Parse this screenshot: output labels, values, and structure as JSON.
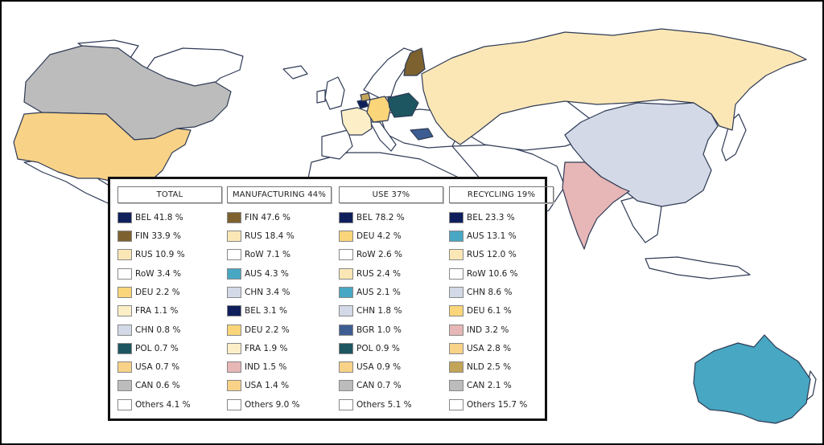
{
  "colors": {
    "BEL": "#0e1f5b",
    "FIN": "#7d6230",
    "RUS": "#fbe7b6",
    "RoW": "#ffffff",
    "DEU": "#fad57a",
    "FRA": "#fcefc8",
    "CHN": "#d3d9e6",
    "POL": "#1d5660",
    "USA": "#f8d287",
    "CAN": "#bcbcbc",
    "Others": "#ffffff",
    "AUS": "#48a7c2",
    "IND": "#e7b6b6",
    "BGR": "#3d5d92",
    "NLD": "#c3a559"
  },
  "legend": {
    "columns": [
      {
        "title": "TOTAL",
        "items": [
          {
            "code": "BEL",
            "label": "BEL 41.8 %"
          },
          {
            "code": "FIN",
            "label": "FIN 33.9 %"
          },
          {
            "code": "RUS",
            "label": "RUS 10.9 %"
          },
          {
            "code": "RoW",
            "label": "RoW 3.4 %"
          },
          {
            "code": "DEU",
            "label": "DEU 2.2 %"
          },
          {
            "code": "FRA",
            "label": "FRA 1.1 %"
          },
          {
            "code": "CHN",
            "label": "CHN 0.8 %"
          },
          {
            "code": "POL",
            "label": "POL 0.7 %"
          },
          {
            "code": "USA",
            "label": "USA 0.7 %"
          },
          {
            "code": "CAN",
            "label": "CAN 0.6 %"
          },
          {
            "code": "Others",
            "label": "Others 4.1 %"
          }
        ]
      },
      {
        "title": "MANUFACTURING  44%",
        "items": [
          {
            "code": "FIN",
            "label": "FIN 47.6 %"
          },
          {
            "code": "RUS",
            "label": "RUS 18.4 %"
          },
          {
            "code": "RoW",
            "label": "RoW 7.1 %"
          },
          {
            "code": "AUS",
            "label": "AUS 4.3 %"
          },
          {
            "code": "CHN",
            "label": "CHN 3.4 %"
          },
          {
            "code": "BEL",
            "label": "BEL 3.1 %"
          },
          {
            "code": "DEU",
            "label": "DEU 2.2 %"
          },
          {
            "code": "FRA",
            "label": "FRA 1.9 %"
          },
          {
            "code": "IND",
            "label": "IND 1.5 %"
          },
          {
            "code": "USA",
            "label": "USA 1.4 %"
          },
          {
            "code": "Others",
            "label": "Others 9.0 %"
          }
        ]
      },
      {
        "title": "USE  37%",
        "items": [
          {
            "code": "BEL",
            "label": "BEL 78.2 %"
          },
          {
            "code": "DEU",
            "label": "DEU 4.2 %"
          },
          {
            "code": "RoW",
            "label": "RoW 2.6 %"
          },
          {
            "code": "RUS",
            "label": "RUS 2.4 %"
          },
          {
            "code": "AUS",
            "label": "AUS 2.1 %"
          },
          {
            "code": "CHN",
            "label": "CHN 1.8 %"
          },
          {
            "code": "BGR",
            "label": "BGR 1.0 %"
          },
          {
            "code": "POL",
            "label": "POL 0.9 %"
          },
          {
            "code": "USA",
            "label": "USA 0.9 %"
          },
          {
            "code": "CAN",
            "label": "CAN 0.7 %"
          },
          {
            "code": "Others",
            "label": "Others 5.1 %"
          }
        ]
      },
      {
        "title": "RECYCLING  19%",
        "items": [
          {
            "code": "BEL",
            "label": "BEL 23.3 %"
          },
          {
            "code": "AUS",
            "label": "AUS 13.1 %"
          },
          {
            "code": "RUS",
            "label": "RUS 12.0 %"
          },
          {
            "code": "RoW",
            "label": "RoW 10.6 %"
          },
          {
            "code": "CHN",
            "label": "CHN 8.6 %"
          },
          {
            "code": "DEU",
            "label": "DEU 6.1 %"
          },
          {
            "code": "IND",
            "label": "IND 3.2 %"
          },
          {
            "code": "USA",
            "label": "USA 2.8 %"
          },
          {
            "code": "NLD",
            "label": "NLD 2.5 %"
          },
          {
            "code": "CAN",
            "label": "CAN 2.1 %"
          },
          {
            "code": "Others",
            "label": "Others 15.7 %"
          }
        ]
      }
    ]
  }
}
